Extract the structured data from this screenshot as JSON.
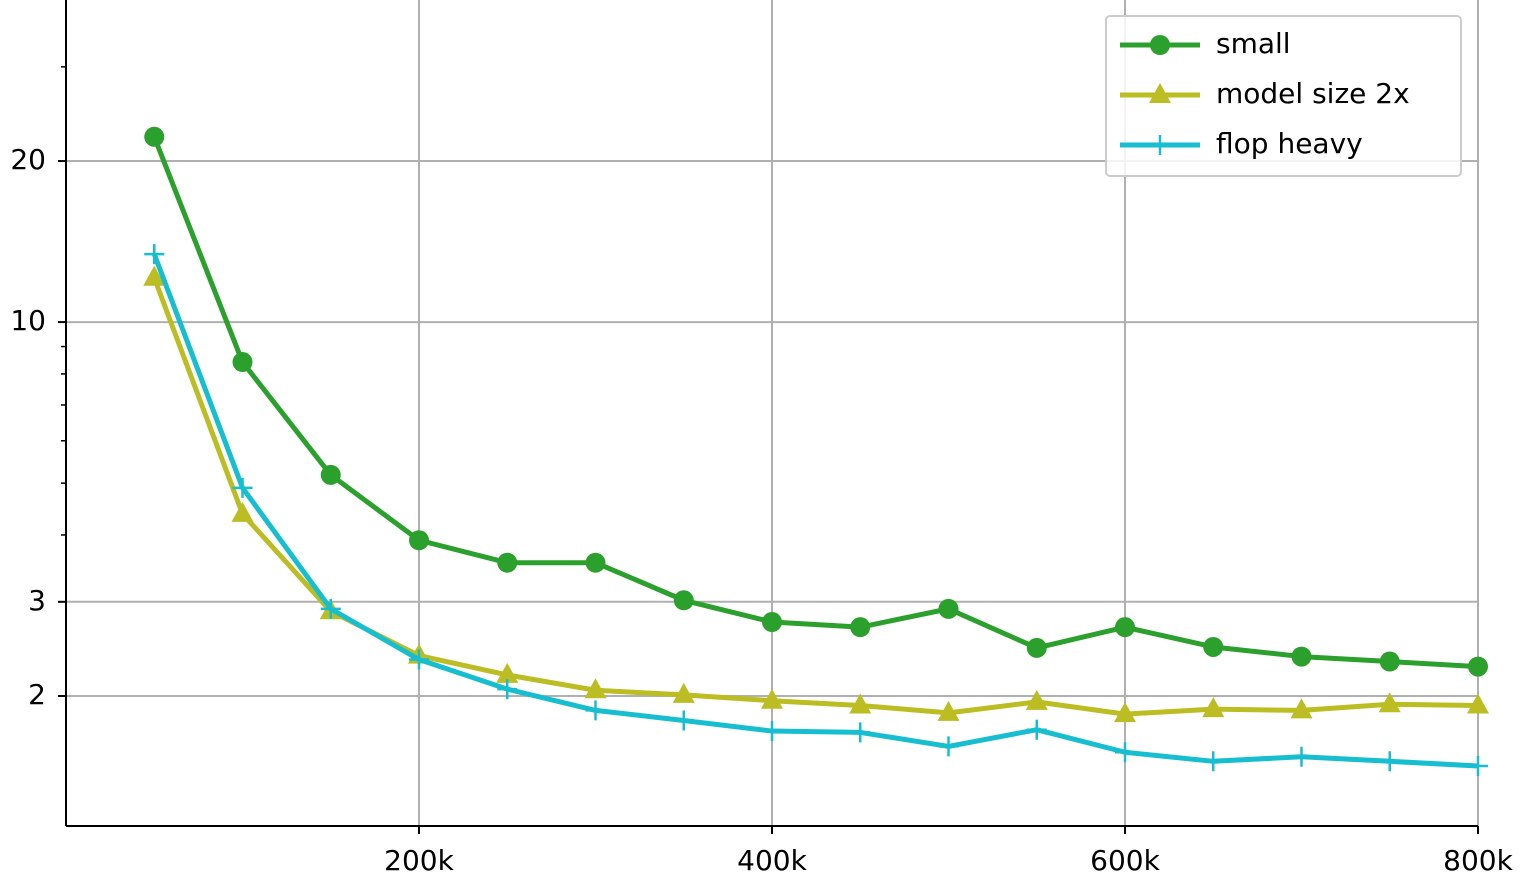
{
  "chart_data": {
    "type": "line",
    "x": [
      50000,
      100000,
      150000,
      200000,
      250000,
      300000,
      350000,
      400000,
      450000,
      500000,
      550000,
      600000,
      650000,
      700000,
      750000,
      800000
    ],
    "series": [
      {
        "name": "small",
        "color": "#2ca02c",
        "marker": "circle",
        "values": [
          22.2,
          8.42,
          5.18,
          3.91,
          3.55,
          3.55,
          3.02,
          2.75,
          2.69,
          2.91,
          2.46,
          2.69,
          2.47,
          2.37,
          2.32,
          2.27
        ]
      },
      {
        "name": "model size 2x",
        "color": "#bcbd22",
        "marker": "triangle",
        "values": [
          12.1,
          4.38,
          2.88,
          2.38,
          2.19,
          2.05,
          2.01,
          1.96,
          1.92,
          1.86,
          1.95,
          1.85,
          1.89,
          1.88,
          1.93,
          1.92
        ]
      },
      {
        "name": "flop heavy",
        "color": "#17becf",
        "marker": "plus",
        "values": [
          13.4,
          4.9,
          2.91,
          2.34,
          2.06,
          1.88,
          1.8,
          1.72,
          1.71,
          1.61,
          1.73,
          1.57,
          1.51,
          1.54,
          1.51,
          1.48
        ]
      }
    ],
    "xlim": [
      0,
      800000
    ],
    "xticks": [
      {
        "value": 200000,
        "label": "200k"
      },
      {
        "value": 400000,
        "label": "400k"
      },
      {
        "value": 600000,
        "label": "600k"
      },
      {
        "value": 800000,
        "label": "800k"
      }
    ],
    "ylim": [
      1.143,
      40
    ],
    "yticks": [
      2,
      3,
      10,
      20
    ],
    "yminorticks": [
      4,
      5,
      6,
      7,
      8,
      9,
      30
    ],
    "ylog": true,
    "grid": true,
    "legend": "upper right"
  }
}
